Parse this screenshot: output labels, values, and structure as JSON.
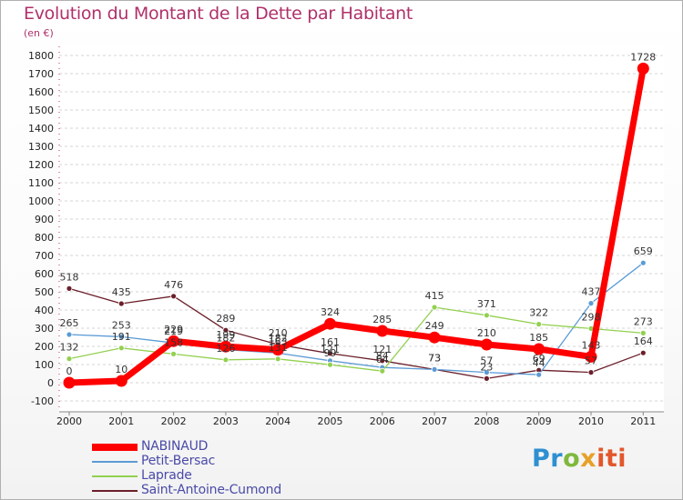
{
  "chart_data": {
    "type": "line",
    "title": "Evolution du Montant de la Dette par Habitant",
    "subtitle": "(en €)",
    "x": [
      "2000",
      "2001",
      "2002",
      "2003",
      "2004",
      "2005",
      "2006",
      "2007",
      "2008",
      "2009",
      "2010",
      "2011"
    ],
    "ylim": [
      -100,
      1800
    ],
    "yticks": [
      -100,
      0,
      100,
      200,
      300,
      400,
      500,
      600,
      700,
      800,
      900,
      1000,
      1100,
      1200,
      1300,
      1400,
      1500,
      1600,
      1700,
      1800
    ],
    "grid": "horizontal",
    "legend_position": "bottom-left",
    "series": [
      {
        "name": "NABINAUD",
        "color": "#ff0000",
        "values": [
          0,
          10,
          229,
          199,
          182,
          324,
          285,
          249,
          210,
          185,
          143,
          1728
        ]
      },
      {
        "name": "Petit-Bersac",
        "color": "#5b9bd5",
        "values": [
          265,
          253,
          219,
          182,
          163,
          121,
          84,
          73,
          57,
          44,
          437,
          659
        ]
      },
      {
        "name": "Laprade",
        "color": "#92d050",
        "values": [
          132,
          191,
          158,
          126,
          131,
          99,
          64,
          415,
          371,
          322,
          298,
          273
        ]
      },
      {
        "name": "Saint-Antoine-Cumond",
        "color": "#6b1f2a",
        "values": [
          518,
          435,
          476,
          289,
          210,
          161,
          121,
          73,
          23,
          69,
          57,
          164
        ]
      }
    ]
  },
  "brand": {
    "logo_p1": "Pr",
    "logo_p2": "o",
    "logo_p3": "x",
    "logo_p4": "iti"
  }
}
